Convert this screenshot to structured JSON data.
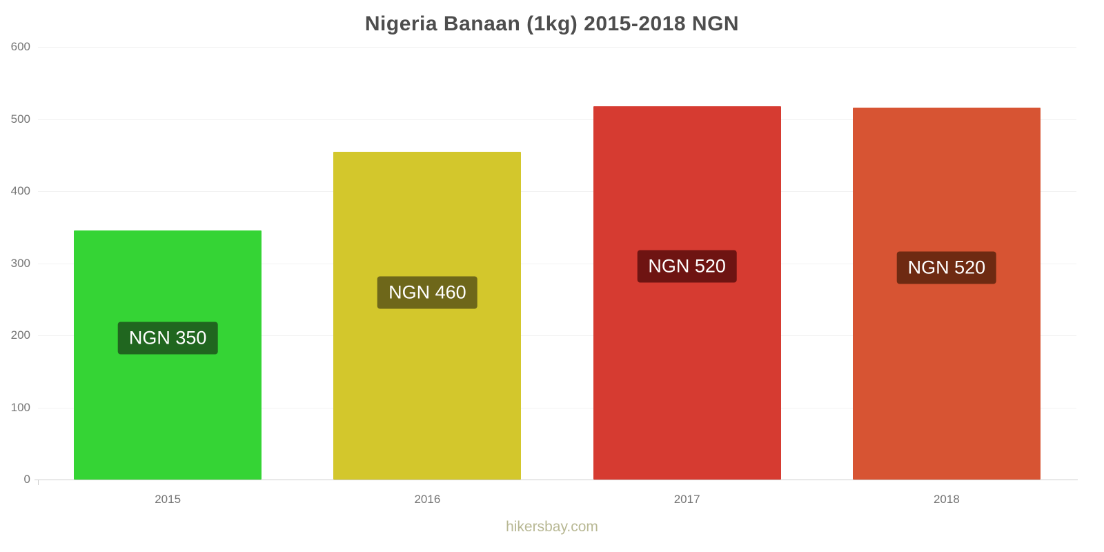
{
  "title": "Nigeria Banaan (1kg) 2015-2018 NGN",
  "footer": "hikersbay.com",
  "chart_data": {
    "type": "bar",
    "title": "Nigeria Banaan (1kg) 2015-2018 NGN",
    "categories": [
      "2015",
      "2016",
      "2017",
      "2018"
    ],
    "values": [
      345,
      455,
      518,
      516
    ],
    "labels": [
      "NGN 350",
      "NGN 460",
      "NGN 520",
      "NGN 520"
    ],
    "bar_colors": [
      "#35d435",
      "#d3c72c",
      "#d63b31",
      "#d75433"
    ],
    "label_bg_colors": [
      "#20661f",
      "#6e671a",
      "#6e1412",
      "#6e2a12"
    ],
    "xlabel": "",
    "ylabel": "",
    "ylim": [
      0,
      600
    ],
    "yticks": [
      0,
      100,
      200,
      300,
      400,
      500,
      600
    ],
    "grid": true,
    "legend": false,
    "source": "hikersbay.com"
  }
}
